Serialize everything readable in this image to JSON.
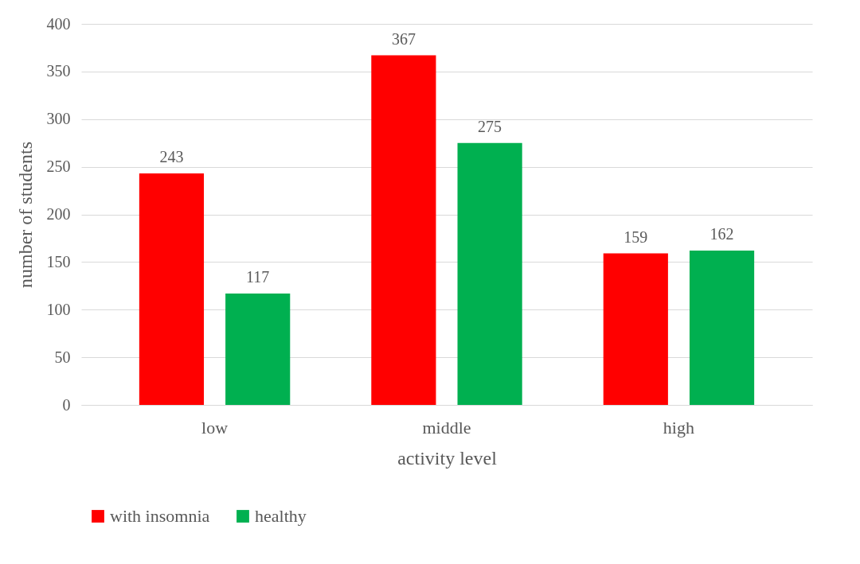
{
  "chart_data": {
    "type": "bar",
    "xlabel": "activity level",
    "ylabel": "number of students",
    "categories": [
      "low",
      "middle",
      "high"
    ],
    "series": [
      {
        "name": "with insomnia",
        "color": "#ff0000",
        "values": [
          243,
          367,
          159
        ]
      },
      {
        "name": "healthy",
        "color": "#00b050",
        "values": [
          117,
          275,
          162
        ]
      }
    ],
    "ylim": [
      0,
      400
    ],
    "yticks": [
      0,
      50,
      100,
      150,
      200,
      250,
      300,
      350,
      400
    ],
    "grid": "y",
    "legend": "bottom",
    "data_labels": true
  }
}
